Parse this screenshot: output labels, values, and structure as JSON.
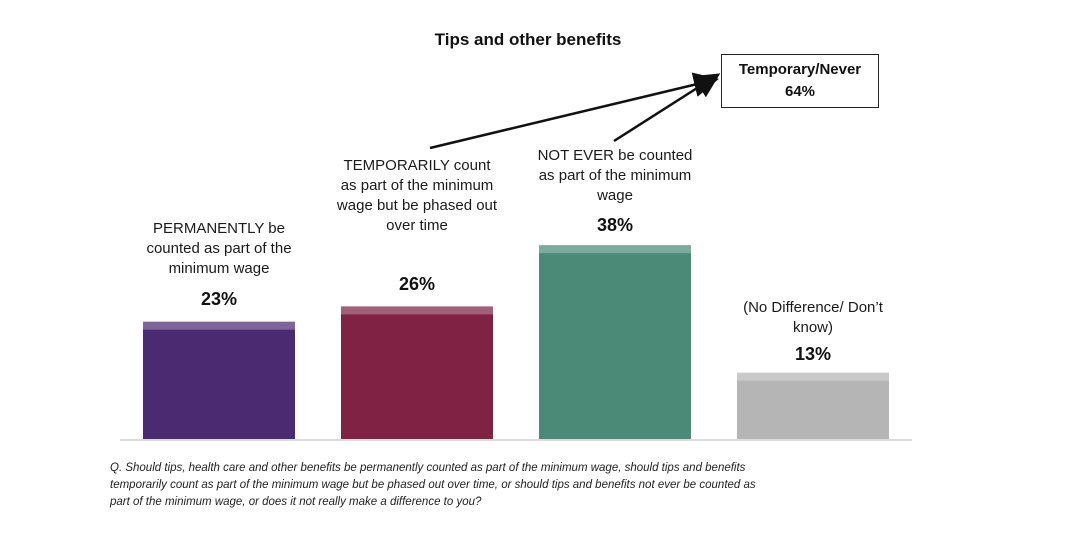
{
  "chart_data": {
    "type": "bar",
    "title": "Tips and other benefits",
    "categories": [
      "PERMANENTLY be counted as part of the minimum wage",
      "TEMPORARILY count as part of the minimum wage but be phased out over time",
      "NOT EVER be counted as part of the minimum wage",
      "(No Difference/ Don’t know)"
    ],
    "values": [
      23,
      26,
      38,
      13
    ],
    "value_labels": [
      "23%",
      "26%",
      "38%",
      "13%"
    ],
    "colors": [
      "#4b2a72",
      "#7f2244",
      "#4a8a76",
      "#b5b5b5"
    ],
    "ylim": [
      0,
      40
    ],
    "grid": false,
    "legend": "none"
  },
  "callout": {
    "line1": "Temporary/Never",
    "line2": "64%"
  },
  "footnote": "Q. Should tips, health care and other benefits be permanently counted as part of the minimum wage, should tips and benefits temporarily count as part of the minimum wage but be phased out over time, or should tips and benefits not ever be counted as part of the minimum wage, or does it not really make a difference to you?"
}
